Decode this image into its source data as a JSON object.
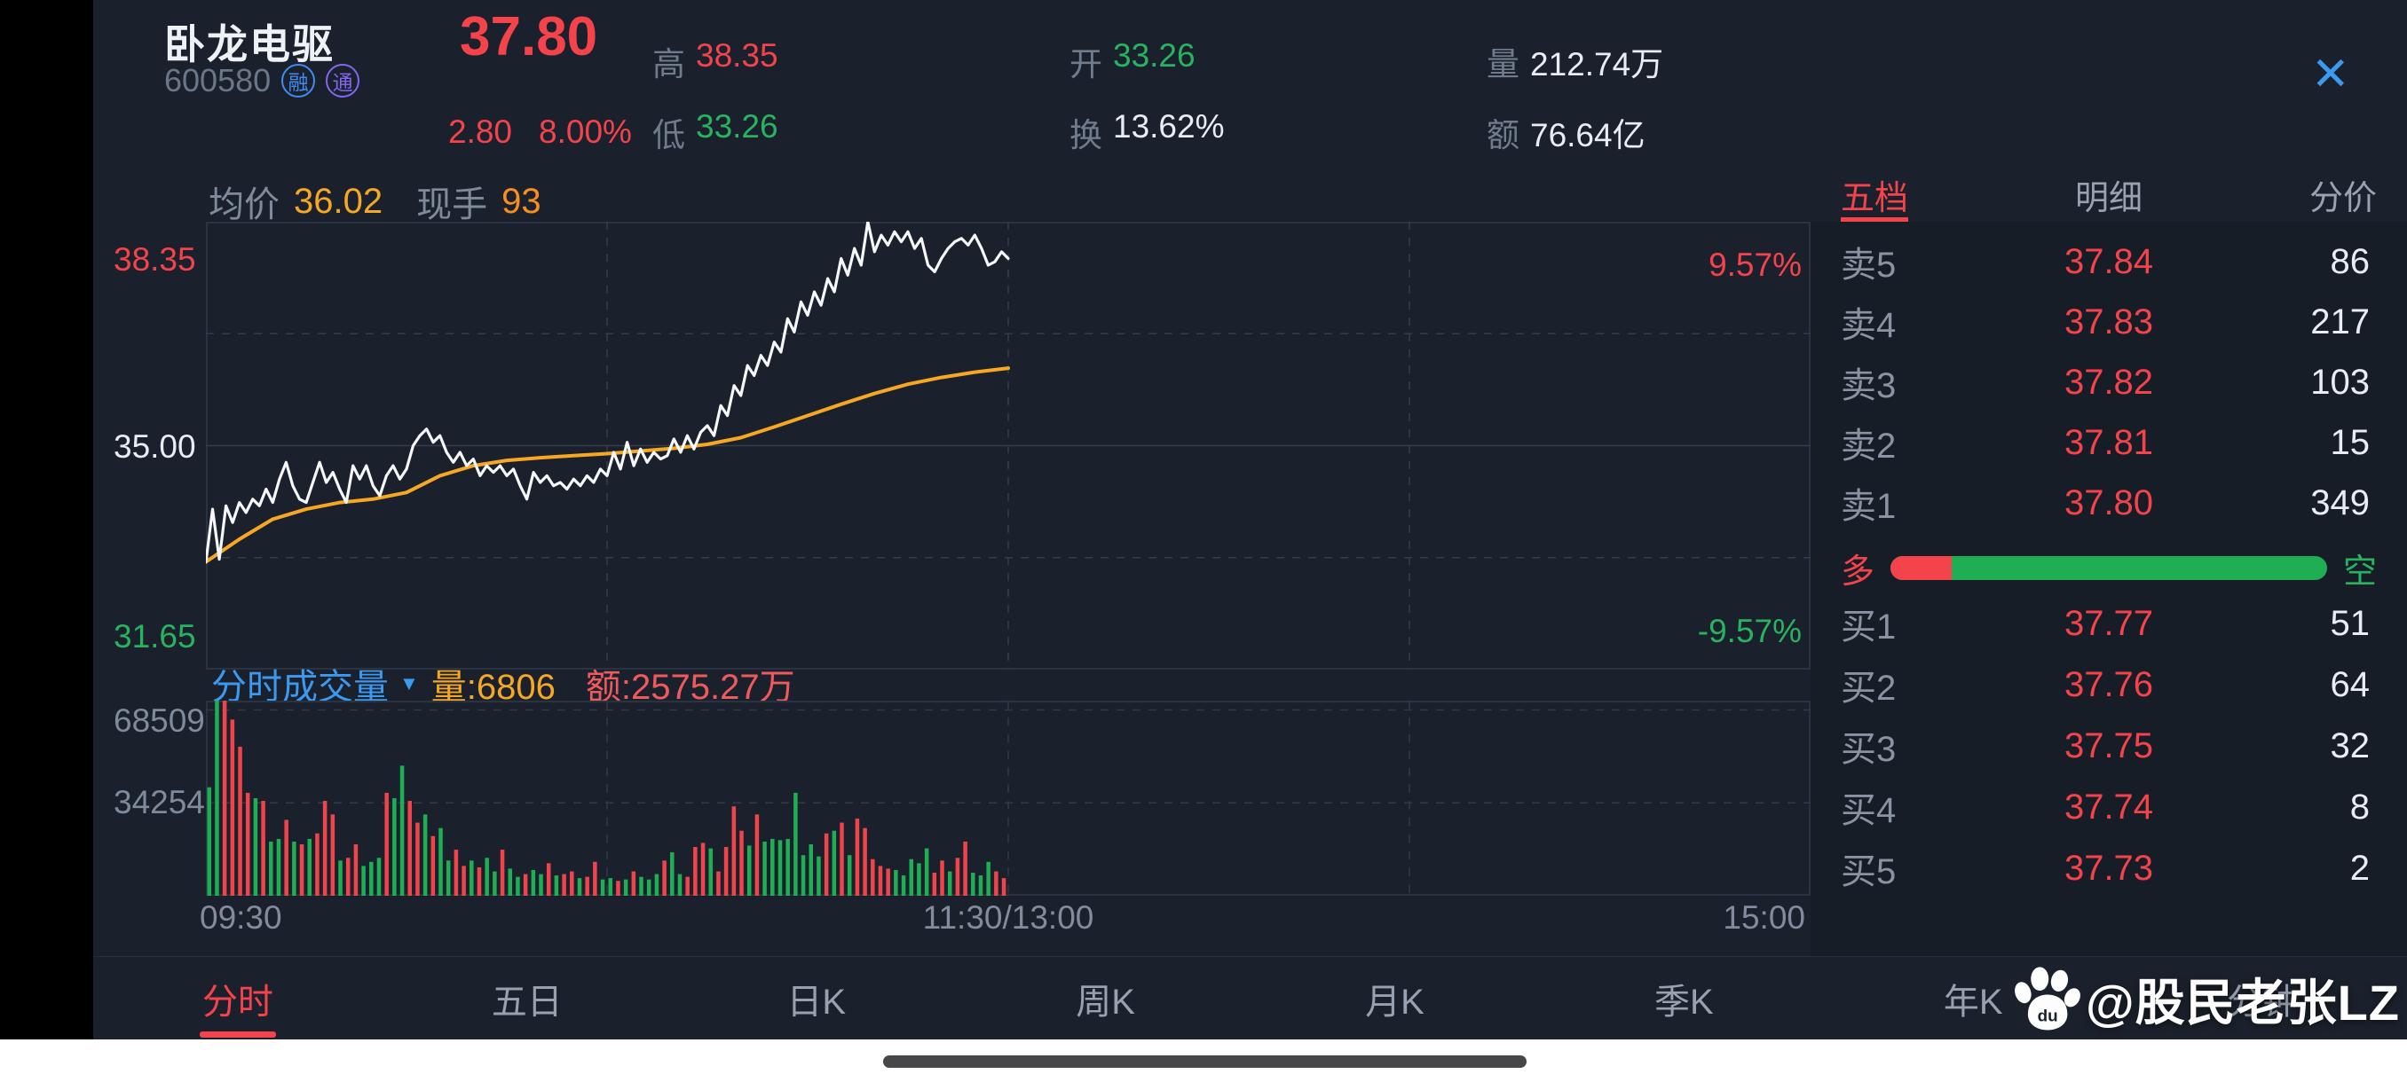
{
  "colors": {
    "red": "#f4434b",
    "green": "#27b35f",
    "white": "#e8edf4",
    "gray": "#7f8a9b",
    "orange": "#f6a724",
    "deep_orange": "#f78e1f",
    "blue": "#3b9af0",
    "salmon": "#ef5a5c",
    "price_line": "#f5f7fa",
    "avg_line": "#f6a724",
    "bar_red": "#f0444b",
    "bar_green": "#1fae54"
  },
  "header": {
    "stock_name": "卧龙电驱",
    "stock_code": "600580",
    "badges": [
      {
        "label": "融",
        "color": "#3f8cf5"
      },
      {
        "label": "通",
        "color": "#8466f0"
      }
    ],
    "price": "37.80",
    "price_color": "red",
    "change": "2.80",
    "change_pct": "8.00%",
    "stats": [
      {
        "label": "高",
        "value": "38.35",
        "color": "red"
      },
      {
        "label": "低",
        "value": "33.26",
        "color": "green"
      },
      {
        "label": "开",
        "value": "33.26",
        "color": "green"
      },
      {
        "label": "换",
        "value": "13.62%",
        "color": "white"
      },
      {
        "label": "量",
        "value": "212.74万",
        "color": "white"
      },
      {
        "label": "额",
        "value": "76.64亿",
        "color": "white"
      }
    ],
    "close_label": "✕"
  },
  "subheader": {
    "avg_label": "均价",
    "avg_value": "36.02",
    "avg_color": "orange",
    "lot_label": "现手",
    "lot_value": "93",
    "lot_color": "deep_orange"
  },
  "volume_header": {
    "title": "分时成交量",
    "dropdown_icon": "▼",
    "vol_label": "量:",
    "vol_value": "6806",
    "amt_label": "额:",
    "amt_value": "2575.27万"
  },
  "order_book": {
    "tabs": [
      {
        "label": "五档",
        "active": true
      },
      {
        "label": "明细",
        "active": false
      },
      {
        "label": "分价",
        "active": false
      }
    ],
    "sells": [
      {
        "label": "卖5",
        "price": "37.84",
        "volume": "86"
      },
      {
        "label": "卖4",
        "price": "37.83",
        "volume": "217"
      },
      {
        "label": "卖3",
        "price": "37.82",
        "volume": "103"
      },
      {
        "label": "卖2",
        "price": "37.81",
        "volume": "15"
      },
      {
        "label": "卖1",
        "price": "37.80",
        "volume": "349"
      }
    ],
    "bull_bear": {
      "bull_label": "多",
      "bear_label": "空",
      "bull_ratio": 0.14
    },
    "buys": [
      {
        "label": "买1",
        "price": "37.77",
        "volume": "51"
      },
      {
        "label": "买2",
        "price": "37.76",
        "volume": "64"
      },
      {
        "label": "买3",
        "price": "37.75",
        "volume": "32"
      },
      {
        "label": "买4",
        "price": "37.74",
        "volume": "8"
      },
      {
        "label": "买5",
        "price": "37.73",
        "volume": "2"
      }
    ]
  },
  "bottom_tabs": {
    "items": [
      {
        "label": "分时",
        "active": true
      },
      {
        "label": "五日",
        "active": false
      },
      {
        "label": "日K",
        "active": false
      },
      {
        "label": "周K",
        "active": false
      },
      {
        "label": "月K",
        "active": false
      },
      {
        "label": "季K",
        "active": false
      },
      {
        "label": "年K",
        "active": false
      },
      {
        "label": "分钟",
        "active": false
      }
    ]
  },
  "watermark": {
    "icon": "baidu-paw",
    "handle": "@股民老张LZ"
  },
  "chart_data": [
    {
      "type": "line",
      "title": "分时走势",
      "x_axis_labels": [
        "09:30",
        "11:30/13:00",
        "15:00"
      ],
      "y_ticks_left": [
        {
          "value": "38.35",
          "color": "red"
        },
        {
          "value": "35.00",
          "color": "white"
        },
        {
          "value": "31.65",
          "color": "green"
        }
      ],
      "y_ticks_right": [
        {
          "value": "9.57%",
          "color": "red"
        },
        {
          "value": "-9.57%",
          "color": "green"
        }
      ],
      "ylim": [
        31.65,
        38.35
      ],
      "prev_close": 35.0,
      "session_minutes_shown": 120,
      "session_fraction_of_axis": 0.5,
      "grid": {
        "h_dashed": [
          36.675,
          33.325
        ],
        "h_solid": [
          35.0
        ],
        "v_dashed_frac": [
          0.25,
          0.5,
          0.75
        ]
      },
      "series": [
        {
          "name": "price",
          "color_key": "price_line",
          "values": [
            33.26,
            34.05,
            33.3,
            34.1,
            33.85,
            34.15,
            34.0,
            34.2,
            34.1,
            34.35,
            34.15,
            34.5,
            34.75,
            34.4,
            34.2,
            34.15,
            34.45,
            34.75,
            34.45,
            34.6,
            34.35,
            34.15,
            34.7,
            34.5,
            34.7,
            34.4,
            34.25,
            34.55,
            34.7,
            34.5,
            34.65,
            35.0,
            35.15,
            35.25,
            35.05,
            35.15,
            34.9,
            34.75,
            34.9,
            34.7,
            34.8,
            34.55,
            34.7,
            34.6,
            34.7,
            34.55,
            34.65,
            34.4,
            34.2,
            34.6,
            34.45,
            34.55,
            34.4,
            34.45,
            34.35,
            34.5,
            34.4,
            34.55,
            34.45,
            34.65,
            34.55,
            34.9,
            34.65,
            35.05,
            34.7,
            34.95,
            34.75,
            34.9,
            34.8,
            34.85,
            35.1,
            34.9,
            35.15,
            34.95,
            35.2,
            35.3,
            35.15,
            35.6,
            35.45,
            35.9,
            35.75,
            36.2,
            36.05,
            36.35,
            36.2,
            36.55,
            36.4,
            36.9,
            36.7,
            37.15,
            36.95,
            37.3,
            37.1,
            37.5,
            37.3,
            37.8,
            37.55,
            37.95,
            37.7,
            38.35,
            37.9,
            38.15,
            38.0,
            38.2,
            38.05,
            38.2,
            37.95,
            38.1,
            37.7,
            37.6,
            37.8,
            37.95,
            38.05,
            38.1,
            38.0,
            38.15,
            37.95,
            37.7,
            37.75,
            37.9,
            37.8
          ]
        },
        {
          "name": "avg",
          "color_key": "avg_line",
          "step_minutes": 5,
          "values": [
            33.26,
            33.6,
            33.9,
            34.05,
            34.15,
            34.2,
            34.3,
            34.55,
            34.7,
            34.78,
            34.82,
            34.85,
            34.88,
            34.92,
            34.96,
            35.02,
            35.12,
            35.28,
            35.45,
            35.62,
            35.78,
            35.92,
            36.02,
            36.1,
            36.16
          ]
        }
      ]
    },
    {
      "type": "bar",
      "title": "分时成交量",
      "y_ticks": [
        "68509",
        "34254"
      ],
      "ylim": [
        0,
        72000
      ],
      "bar_colors": {
        "r": "up-red",
        "g": "down-green"
      },
      "bars": [
        [
          40000,
          "g"
        ],
        [
          78000,
          "g"
        ],
        [
          72000,
          "r"
        ],
        [
          65000,
          "r"
        ],
        [
          55000,
          "r"
        ],
        [
          38000,
          "r"
        ],
        [
          36000,
          "g"
        ],
        [
          35000,
          "r"
        ],
        [
          20000,
          "g"
        ],
        [
          21000,
          "g"
        ],
        [
          28000,
          "r"
        ],
        [
          20000,
          "g"
        ],
        [
          19000,
          "r"
        ],
        [
          21000,
          "g"
        ],
        [
          23000,
          "r"
        ],
        [
          35000,
          "r"
        ],
        [
          30000,
          "r"
        ],
        [
          13000,
          "g"
        ],
        [
          14000,
          "r"
        ],
        [
          19000,
          "r"
        ],
        [
          11000,
          "g"
        ],
        [
          12500,
          "g"
        ],
        [
          14000,
          "g"
        ],
        [
          38000,
          "r"
        ],
        [
          36000,
          "g"
        ],
        [
          48000,
          "g"
        ],
        [
          35000,
          "r"
        ],
        [
          27000,
          "r"
        ],
        [
          30000,
          "g"
        ],
        [
          22000,
          "r"
        ],
        [
          25000,
          "g"
        ],
        [
          13000,
          "g"
        ],
        [
          17000,
          "r"
        ],
        [
          11000,
          "r"
        ],
        [
          13000,
          "g"
        ],
        [
          10500,
          "r"
        ],
        [
          14000,
          "g"
        ],
        [
          9000,
          "g"
        ],
        [
          17000,
          "r"
        ],
        [
          10000,
          "g"
        ],
        [
          7000,
          "g"
        ],
        [
          8000,
          "r"
        ],
        [
          9500,
          "g"
        ],
        [
          8000,
          "g"
        ],
        [
          12000,
          "r"
        ],
        [
          7500,
          "g"
        ],
        [
          8000,
          "r"
        ],
        [
          9000,
          "r"
        ],
        [
          6500,
          "g"
        ],
        [
          7000,
          "r"
        ],
        [
          12500,
          "r"
        ],
        [
          6000,
          "g"
        ],
        [
          6500,
          "g"
        ],
        [
          5500,
          "r"
        ],
        [
          6000,
          "g"
        ],
        [
          9000,
          "r"
        ],
        [
          7000,
          "g"
        ],
        [
          6000,
          "g"
        ],
        [
          8000,
          "g"
        ],
        [
          13000,
          "r"
        ],
        [
          16000,
          "g"
        ],
        [
          8000,
          "g"
        ],
        [
          7000,
          "r"
        ],
        [
          18000,
          "r"
        ],
        [
          19500,
          "r"
        ],
        [
          17500,
          "g"
        ],
        [
          9000,
          "r"
        ],
        [
          18000,
          "r"
        ],
        [
          33000,
          "r"
        ],
        [
          24000,
          "r"
        ],
        [
          18500,
          "g"
        ],
        [
          30000,
          "r"
        ],
        [
          20000,
          "g"
        ],
        [
          21000,
          "g"
        ],
        [
          20500,
          "g"
        ],
        [
          21000,
          "g"
        ],
        [
          38000,
          "g"
        ],
        [
          15000,
          "g"
        ],
        [
          19000,
          "g"
        ],
        [
          14500,
          "g"
        ],
        [
          23000,
          "r"
        ],
        [
          24000,
          "g"
        ],
        [
          27000,
          "r"
        ],
        [
          15000,
          "g"
        ],
        [
          28500,
          "r"
        ],
        [
          25000,
          "r"
        ],
        [
          13500,
          "r"
        ],
        [
          11000,
          "r"
        ],
        [
          10000,
          "r"
        ],
        [
          9500,
          "g"
        ],
        [
          7500,
          "g"
        ],
        [
          13500,
          "g"
        ],
        [
          12000,
          "g"
        ],
        [
          17500,
          "g"
        ],
        [
          8500,
          "r"
        ],
        [
          13000,
          "r"
        ],
        [
          9000,
          "g"
        ],
        [
          14000,
          "r"
        ],
        [
          20000,
          "r"
        ],
        [
          8500,
          "g"
        ],
        [
          7500,
          "g"
        ],
        [
          12500,
          "g"
        ],
        [
          9000,
          "r"
        ],
        [
          6500,
          "r"
        ]
      ]
    }
  ]
}
